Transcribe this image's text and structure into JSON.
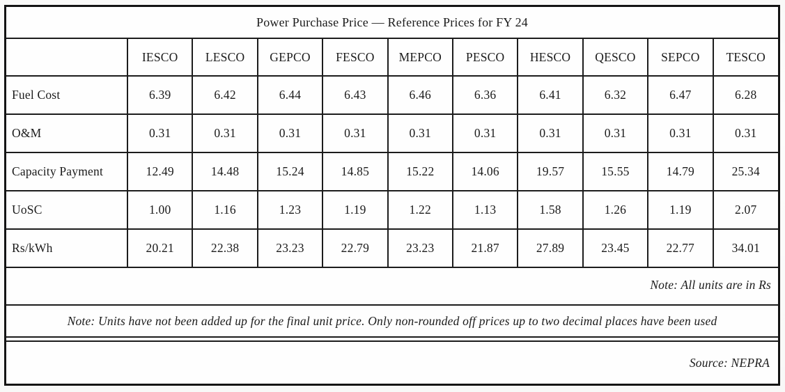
{
  "document": {
    "title": "Power Purchase Price — Reference Prices for FY 24",
    "table": {
      "corner_label": "",
      "columns": [
        "IESCO",
        "LESCO",
        "GEPCO",
        "FESCO",
        "MEPCO",
        "PESCO",
        "HESCO",
        "QESCO",
        "SEPCO",
        "TESCO"
      ],
      "rows": [
        {
          "label": "Fuel Cost",
          "values": [
            "6.39",
            "6.42",
            "6.44",
            "6.43",
            "6.46",
            "6.36",
            "6.41",
            "6.32",
            "6.47",
            "6.28"
          ]
        },
        {
          "label": "O&M",
          "values": [
            "0.31",
            "0.31",
            "0.31",
            "0.31",
            "0.31",
            "0.31",
            "0.31",
            "0.31",
            "0.31",
            "0.31"
          ]
        },
        {
          "label": "Capacity Payment",
          "values": [
            "12.49",
            "14.48",
            "15.24",
            "14.85",
            "15.22",
            "14.06",
            "19.57",
            "15.55",
            "14.79",
            "25.34"
          ]
        },
        {
          "label": "UoSC",
          "values": [
            "1.00",
            "1.16",
            "1.23",
            "1.19",
            "1.22",
            "1.13",
            "1.58",
            "1.26",
            "1.19",
            "2.07"
          ]
        },
        {
          "label": "Rs/kWh",
          "values": [
            "20.21",
            "22.38",
            "23.23",
            "22.79",
            "23.23",
            "21.87",
            "27.89",
            "23.45",
            "22.77",
            "34.01"
          ]
        }
      ],
      "notes": [
        {
          "text": "Note: All units are in Rs"
        },
        {
          "text": "Note: Units have not been added up for the final unit price. Only non-rounded off prices up to two decimal places have been used"
        },
        {
          "text": "Source: NEPRA"
        }
      ]
    },
    "colors": {
      "ink": "#1b1b1b",
      "border": "#1c1c1c",
      "paper": "#fdfdfc"
    }
  }
}
